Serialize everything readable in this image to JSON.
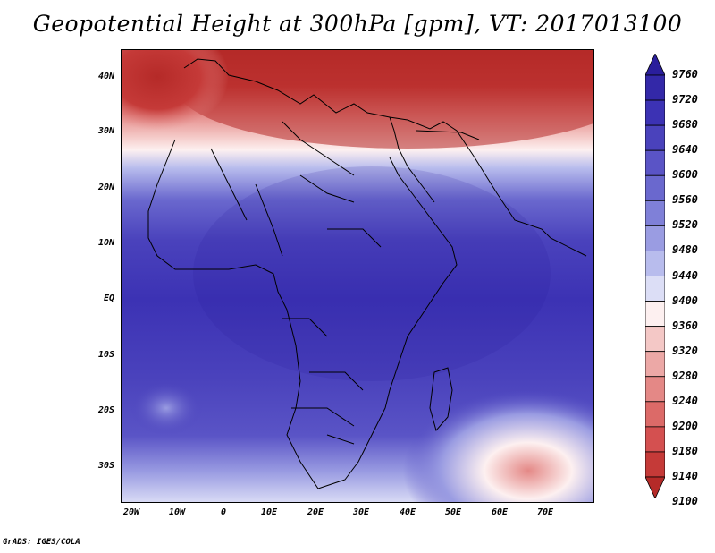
{
  "title": "Geopotential Height at 300hPa [gpm], VT: 2017013100",
  "footer": "GrADS: IGES/COLA",
  "map": {
    "lat_labels": [
      "40N",
      "30N",
      "20N",
      "10N",
      "EQ",
      "10S",
      "20S",
      "30S"
    ],
    "lon_labels": [
      "20W",
      "10W",
      "0",
      "10E",
      "20E",
      "30E",
      "40E",
      "50E",
      "60E",
      "70E"
    ],
    "lon_range": [
      -22,
      80
    ],
    "lat_range": [
      -37,
      45
    ]
  },
  "colorbar": {
    "levels": [
      "9760",
      "9720",
      "9680",
      "9640",
      "9600",
      "9560",
      "9520",
      "9480",
      "9440",
      "9400",
      "9360",
      "9320",
      "9280",
      "9240",
      "9200",
      "9180",
      "9140",
      "9100"
    ],
    "colors": [
      "#2a1e9c",
      "#3328a8",
      "#3c32b4",
      "#4a42bc",
      "#5a54c6",
      "#6a68ce",
      "#7f80d8",
      "#9a9ce2",
      "#b8bced",
      "#dcdef6",
      "#fdf0f0",
      "#f4c8c6",
      "#eca8a6",
      "#e48886",
      "#dc6a68",
      "#d45050",
      "#c53a38",
      "#b52a28"
    ]
  }
}
